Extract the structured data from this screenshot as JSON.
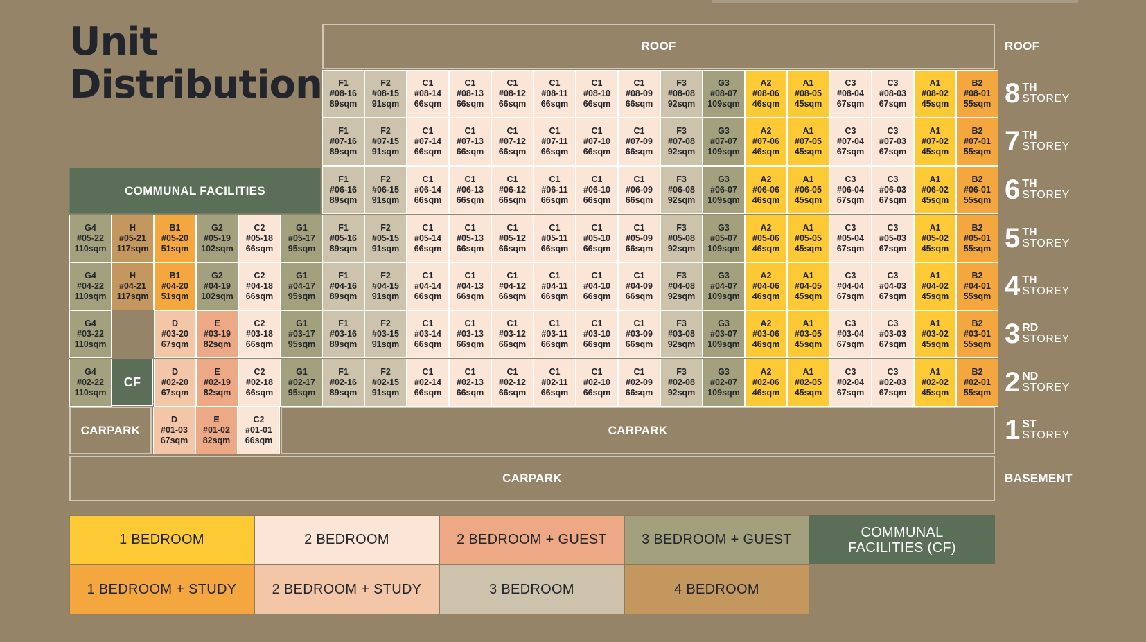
{
  "title": {
    "line1": "Unit",
    "line2": "Distribution"
  },
  "colors": {
    "1_bedroom": "#fdca36",
    "1_bedroom_study": "#f5a73f",
    "2_bedroom": "#fbe5d7",
    "2_bedroom_study": "#f4c6a8",
    "2_bedroom_guest": "#eda986",
    "3_bedroom": "#cdc2ab",
    "3_bedroom_guest": "#a3a17d",
    "4_bedroom": "#c4975f",
    "communal_facilities": "#5a6e58"
  },
  "blocks": {
    "roof": "ROOF",
    "communal": "COMMUNAL FACILITIES",
    "cf": "CF",
    "carpark_left": "CARPARK",
    "carpark_right": "CARPARK",
    "carpark_basement": "CARPARK"
  },
  "floor_labels": [
    {
      "key": "roof",
      "plain": "ROOF"
    },
    {
      "key": "8",
      "num": "8",
      "suffix": "TH",
      "word": "STOREY"
    },
    {
      "key": "7",
      "num": "7",
      "suffix": "TH",
      "word": "STOREY"
    },
    {
      "key": "6",
      "num": "6",
      "suffix": "TH",
      "word": "STOREY"
    },
    {
      "key": "5",
      "num": "5",
      "suffix": "TH",
      "word": "STOREY"
    },
    {
      "key": "4",
      "num": "4",
      "suffix": "TH",
      "word": "STOREY"
    },
    {
      "key": "3",
      "num": "3",
      "suffix": "RD",
      "word": "STOREY"
    },
    {
      "key": "2",
      "num": "2",
      "suffix": "ND",
      "word": "STOREY"
    },
    {
      "key": "1",
      "num": "1",
      "suffix": "ST",
      "word": "STOREY"
    },
    {
      "key": "basement",
      "plain": "BASEMENT"
    }
  ],
  "unit_types": {
    "A1": {
      "size": "45sqm",
      "category": "1_bedroom"
    },
    "A2": {
      "size": "46sqm",
      "category": "1_bedroom"
    },
    "B1": {
      "size": "51sqm",
      "category": "1_bedroom_study"
    },
    "B2": {
      "size": "55sqm",
      "category": "1_bedroom_study"
    },
    "C1": {
      "size": "66sqm",
      "category": "2_bedroom"
    },
    "C2": {
      "size": "66sqm",
      "category": "2_bedroom"
    },
    "C3": {
      "size": "67sqm",
      "category": "2_bedroom"
    },
    "D": {
      "size": "67sqm",
      "category": "2_bedroom_study"
    },
    "E": {
      "size": "82sqm",
      "category": "2_bedroom_guest"
    },
    "F1": {
      "size": "89sqm",
      "category": "3_bedroom"
    },
    "F2": {
      "size": "91sqm",
      "category": "3_bedroom"
    },
    "F3": {
      "size": "92sqm",
      "category": "3_bedroom"
    },
    "G1": {
      "size": "95sqm",
      "category": "3_bedroom_guest"
    },
    "G2": {
      "size": "102sqm",
      "category": "3_bedroom_guest"
    },
    "G3": {
      "size": "109sqm",
      "category": "3_bedroom_guest"
    },
    "G4": {
      "size": "110sqm",
      "category": "3_bedroom_guest"
    },
    "H": {
      "size": "117sqm",
      "category": "4_bedroom"
    }
  },
  "floors": [
    {
      "floor": "08",
      "units": [
        {
          "no": "16",
          "type": "F1"
        },
        {
          "no": "15",
          "type": "F2"
        },
        {
          "no": "14",
          "type": "C1"
        },
        {
          "no": "13",
          "type": "C1"
        },
        {
          "no": "12",
          "type": "C1"
        },
        {
          "no": "11",
          "type": "C1"
        },
        {
          "no": "10",
          "type": "C1"
        },
        {
          "no": "09",
          "type": "C1"
        },
        {
          "no": "08",
          "type": "F3"
        },
        {
          "no": "07",
          "type": "G3"
        },
        {
          "no": "06",
          "type": "A2"
        },
        {
          "no": "05",
          "type": "A1"
        },
        {
          "no": "04",
          "type": "C3"
        },
        {
          "no": "03",
          "type": "C3"
        },
        {
          "no": "02",
          "type": "A1"
        },
        {
          "no": "01",
          "type": "B2"
        }
      ]
    },
    {
      "floor": "07",
      "units": [
        {
          "no": "16",
          "type": "F1"
        },
        {
          "no": "15",
          "type": "F2"
        },
        {
          "no": "14",
          "type": "C1"
        },
        {
          "no": "13",
          "type": "C1"
        },
        {
          "no": "12",
          "type": "C1"
        },
        {
          "no": "11",
          "type": "C1"
        },
        {
          "no": "10",
          "type": "C1"
        },
        {
          "no": "09",
          "type": "C1"
        },
        {
          "no": "08",
          "type": "F3"
        },
        {
          "no": "07",
          "type": "G3"
        },
        {
          "no": "06",
          "type": "A2"
        },
        {
          "no": "05",
          "type": "A1"
        },
        {
          "no": "04",
          "type": "C3"
        },
        {
          "no": "03",
          "type": "C3"
        },
        {
          "no": "02",
          "type": "A1"
        },
        {
          "no": "01",
          "type": "B2"
        }
      ]
    },
    {
      "floor": "06",
      "units": [
        {
          "no": "16",
          "type": "F1"
        },
        {
          "no": "15",
          "type": "F2"
        },
        {
          "no": "14",
          "type": "C1"
        },
        {
          "no": "13",
          "type": "C1"
        },
        {
          "no": "12",
          "type": "C1"
        },
        {
          "no": "11",
          "type": "C1"
        },
        {
          "no": "10",
          "type": "C1"
        },
        {
          "no": "09",
          "type": "C1"
        },
        {
          "no": "08",
          "type": "F3"
        },
        {
          "no": "07",
          "type": "G3"
        },
        {
          "no": "06",
          "type": "A2"
        },
        {
          "no": "05",
          "type": "A1"
        },
        {
          "no": "04",
          "type": "C3"
        },
        {
          "no": "03",
          "type": "C3"
        },
        {
          "no": "02",
          "type": "A1"
        },
        {
          "no": "01",
          "type": "B2"
        }
      ]
    },
    {
      "floor": "05",
      "units": [
        {
          "no": "22",
          "type": "G4"
        },
        {
          "no": "21",
          "type": "H"
        },
        {
          "no": "20",
          "type": "B1"
        },
        {
          "no": "19",
          "type": "G2"
        },
        {
          "no": "18",
          "type": "C2"
        },
        {
          "no": "17",
          "type": "G1"
        },
        {
          "no": "16",
          "type": "F1"
        },
        {
          "no": "15",
          "type": "F2"
        },
        {
          "no": "14",
          "type": "C1"
        },
        {
          "no": "13",
          "type": "C1"
        },
        {
          "no": "12",
          "type": "C1"
        },
        {
          "no": "11",
          "type": "C1"
        },
        {
          "no": "10",
          "type": "C1"
        },
        {
          "no": "09",
          "type": "C1"
        },
        {
          "no": "08",
          "type": "F3"
        },
        {
          "no": "07",
          "type": "G3"
        },
        {
          "no": "06",
          "type": "A2"
        },
        {
          "no": "05",
          "type": "A1"
        },
        {
          "no": "04",
          "type": "C3"
        },
        {
          "no": "03",
          "type": "C3"
        },
        {
          "no": "02",
          "type": "A1"
        },
        {
          "no": "01",
          "type": "B2"
        }
      ]
    },
    {
      "floor": "04",
      "units": [
        {
          "no": "22",
          "type": "G4"
        },
        {
          "no": "21",
          "type": "H"
        },
        {
          "no": "20",
          "type": "B1"
        },
        {
          "no": "19",
          "type": "G2"
        },
        {
          "no": "18",
          "type": "C2"
        },
        {
          "no": "17",
          "type": "G1"
        },
        {
          "no": "16",
          "type": "F1"
        },
        {
          "no": "15",
          "type": "F2"
        },
        {
          "no": "14",
          "type": "C1"
        },
        {
          "no": "13",
          "type": "C1"
        },
        {
          "no": "12",
          "type": "C1"
        },
        {
          "no": "11",
          "type": "C1"
        },
        {
          "no": "10",
          "type": "C1"
        },
        {
          "no": "09",
          "type": "C1"
        },
        {
          "no": "08",
          "type": "F3"
        },
        {
          "no": "07",
          "type": "G3"
        },
        {
          "no": "06",
          "type": "A2"
        },
        {
          "no": "05",
          "type": "A1"
        },
        {
          "no": "04",
          "type": "C3"
        },
        {
          "no": "03",
          "type": "C3"
        },
        {
          "no": "02",
          "type": "A1"
        },
        {
          "no": "01",
          "type": "B2"
        }
      ]
    },
    {
      "floor": "03",
      "units": [
        {
          "no": "22",
          "type": "G4"
        },
        null,
        {
          "no": "20",
          "type": "D"
        },
        {
          "no": "19",
          "type": "E"
        },
        {
          "no": "18",
          "type": "C2"
        },
        {
          "no": "17",
          "type": "G1"
        },
        {
          "no": "16",
          "type": "F1"
        },
        {
          "no": "15",
          "type": "F2"
        },
        {
          "no": "14",
          "type": "C1"
        },
        {
          "no": "13",
          "type": "C1"
        },
        {
          "no": "12",
          "type": "C1"
        },
        {
          "no": "11",
          "type": "C1"
        },
        {
          "no": "10",
          "type": "C1"
        },
        {
          "no": "09",
          "type": "C1"
        },
        {
          "no": "08",
          "type": "F3"
        },
        {
          "no": "07",
          "type": "G3"
        },
        {
          "no": "06",
          "type": "A2"
        },
        {
          "no": "05",
          "type": "A1"
        },
        {
          "no": "04",
          "type": "C3"
        },
        {
          "no": "03",
          "type": "C3"
        },
        {
          "no": "02",
          "type": "A1"
        },
        {
          "no": "01",
          "type": "B2"
        }
      ]
    },
    {
      "floor": "02",
      "units": [
        {
          "no": "22",
          "type": "G4"
        },
        null,
        {
          "no": "20",
          "type": "D"
        },
        {
          "no": "19",
          "type": "E"
        },
        {
          "no": "18",
          "type": "C2"
        },
        {
          "no": "17",
          "type": "G1"
        },
        {
          "no": "16",
          "type": "F1"
        },
        {
          "no": "15",
          "type": "F2"
        },
        {
          "no": "14",
          "type": "C1"
        },
        {
          "no": "13",
          "type": "C1"
        },
        {
          "no": "12",
          "type": "C1"
        },
        {
          "no": "11",
          "type": "C1"
        },
        {
          "no": "10",
          "type": "C1"
        },
        {
          "no": "09",
          "type": "C1"
        },
        {
          "no": "08",
          "type": "F3"
        },
        {
          "no": "07",
          "type": "G3"
        },
        {
          "no": "06",
          "type": "A2"
        },
        {
          "no": "05",
          "type": "A1"
        },
        {
          "no": "04",
          "type": "C3"
        },
        {
          "no": "03",
          "type": "C3"
        },
        {
          "no": "02",
          "type": "A1"
        },
        {
          "no": "01",
          "type": "B2"
        }
      ]
    },
    {
      "floor": "01",
      "units": [
        {
          "no": "03",
          "type": "D"
        },
        {
          "no": "02",
          "type": "E"
        },
        {
          "no": "01",
          "type": "C2"
        }
      ]
    }
  ],
  "legend": [
    {
      "label": "1 BEDROOM",
      "category": "1_bedroom"
    },
    {
      "label": "2 BEDROOM",
      "category": "2_bedroom"
    },
    {
      "label": "2 BEDROOM + GUEST",
      "category": "2_bedroom_guest"
    },
    {
      "label": "3 BEDROOM + GUEST",
      "category": "3_bedroom_guest"
    },
    {
      "label": "COMMUNAL FACILITIES (CF)",
      "category": "communal_facilities"
    },
    {
      "label": "1 BEDROOM + STUDY",
      "category": "1_bedroom_study"
    },
    {
      "label": "2 BEDROOM + STUDY",
      "category": "2_bedroom_study"
    },
    {
      "label": "3 BEDROOM",
      "category": "3_bedroom"
    },
    {
      "label": "4 BEDROOM",
      "category": "4_bedroom"
    }
  ]
}
